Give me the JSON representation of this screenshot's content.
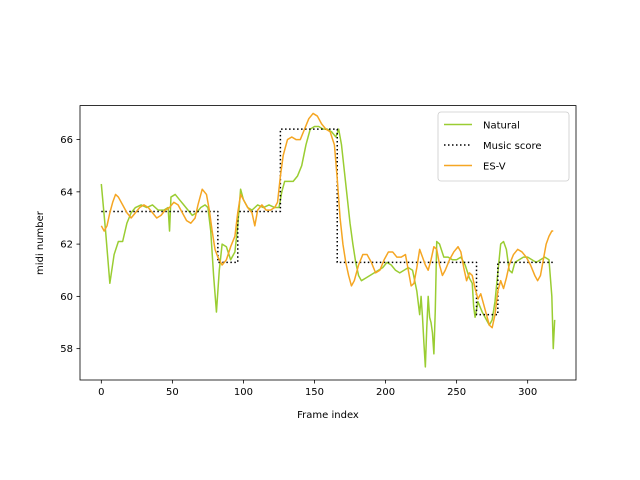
{
  "chart_data": {
    "type": "line",
    "xlabel": "Frame index",
    "ylabel": "midi number",
    "xlim": [
      -15,
      334
    ],
    "ylim": [
      56.8,
      67.3
    ],
    "xticks": [
      0,
      50,
      100,
      150,
      200,
      250,
      300
    ],
    "yticks": [
      58,
      60,
      62,
      64,
      66
    ],
    "grid": false,
    "legend_position": "top-right",
    "series": [
      {
        "name": "Natural",
        "color": "#9acd32",
        "style": "solid",
        "points": [
          [
            0,
            64.3
          ],
          [
            3,
            62.5
          ],
          [
            6,
            60.5
          ],
          [
            9,
            61.6
          ],
          [
            12,
            62.1
          ],
          [
            15,
            62.1
          ],
          [
            18,
            62.8
          ],
          [
            21,
            63.2
          ],
          [
            24,
            63.4
          ],
          [
            28,
            63.5
          ],
          [
            32,
            63.4
          ],
          [
            36,
            63.5
          ],
          [
            40,
            63.3
          ],
          [
            44,
            63.3
          ],
          [
            47,
            63.4
          ],
          [
            48,
            62.5
          ],
          [
            49,
            63.8
          ],
          [
            52,
            63.9
          ],
          [
            55,
            63.7
          ],
          [
            58,
            63.5
          ],
          [
            61,
            63.3
          ],
          [
            64,
            63.1
          ],
          [
            67,
            63.2
          ],
          [
            70,
            63.4
          ],
          [
            73,
            63.5
          ],
          [
            75,
            63.4
          ],
          [
            77,
            62.5
          ],
          [
            79,
            60.8
          ],
          [
            81,
            59.4
          ],
          [
            83,
            61.0
          ],
          [
            85,
            62.0
          ],
          [
            88,
            61.9
          ],
          [
            91,
            61.4
          ],
          [
            94,
            61.7
          ],
          [
            96,
            62.7
          ],
          [
            98,
            64.1
          ],
          [
            100,
            63.7
          ],
          [
            103,
            63.4
          ],
          [
            106,
            63.3
          ],
          [
            110,
            63.5
          ],
          [
            114,
            63.4
          ],
          [
            118,
            63.5
          ],
          [
            122,
            63.4
          ],
          [
            125,
            63.4
          ],
          [
            127,
            64.0
          ],
          [
            129,
            64.4
          ],
          [
            132,
            64.4
          ],
          [
            135,
            64.4
          ],
          [
            138,
            64.6
          ],
          [
            141,
            65.0
          ],
          [
            144,
            65.8
          ],
          [
            147,
            66.4
          ],
          [
            150,
            66.5
          ],
          [
            153,
            66.5
          ],
          [
            156,
            66.4
          ],
          [
            159,
            66.4
          ],
          [
            162,
            66.3
          ],
          [
            165,
            66.1
          ],
          [
            167,
            66.4
          ],
          [
            169,
            65.8
          ],
          [
            171,
            64.8
          ],
          [
            173,
            63.8
          ],
          [
            175,
            62.8
          ],
          [
            177,
            62.0
          ],
          [
            179,
            61.3
          ],
          [
            181,
            60.8
          ],
          [
            183,
            60.6
          ],
          [
            186,
            60.7
          ],
          [
            189,
            60.8
          ],
          [
            192,
            60.9
          ],
          [
            195,
            61.0
          ],
          [
            198,
            61.1
          ],
          [
            201,
            61.3
          ],
          [
            204,
            61.2
          ],
          [
            207,
            61.0
          ],
          [
            210,
            60.9
          ],
          [
            213,
            61.0
          ],
          [
            216,
            61.1
          ],
          [
            219,
            61.0
          ],
          [
            222,
            60.2
          ],
          [
            224,
            59.3
          ],
          [
            225,
            60.0
          ],
          [
            226,
            59.2
          ],
          [
            227,
            58.2
          ],
          [
            228,
            57.3
          ],
          [
            229,
            58.8
          ],
          [
            230,
            60.0
          ],
          [
            231,
            59.2
          ],
          [
            232,
            59.0
          ],
          [
            233,
            58.6
          ],
          [
            234,
            57.8
          ],
          [
            235,
            59.5
          ],
          [
            236,
            62.1
          ],
          [
            238,
            62.0
          ],
          [
            241,
            61.5
          ],
          [
            244,
            61.5
          ],
          [
            247,
            61.4
          ],
          [
            250,
            61.4
          ],
          [
            253,
            61.5
          ],
          [
            256,
            61.2
          ],
          [
            259,
            60.7
          ],
          [
            261,
            60.5
          ],
          [
            262,
            59.6
          ],
          [
            263,
            59.2
          ],
          [
            265,
            59.8
          ],
          [
            268,
            59.4
          ],
          [
            271,
            59.1
          ],
          [
            273,
            58.9
          ],
          [
            275,
            59.1
          ],
          [
            277,
            59.8
          ],
          [
            279,
            60.9
          ],
          [
            281,
            62.0
          ],
          [
            283,
            62.1
          ],
          [
            285,
            61.8
          ],
          [
            287,
            61.0
          ],
          [
            289,
            60.9
          ],
          [
            291,
            61.3
          ],
          [
            294,
            61.4
          ],
          [
            297,
            61.5
          ],
          [
            300,
            61.5
          ],
          [
            303,
            61.4
          ],
          [
            306,
            61.3
          ],
          [
            309,
            61.4
          ],
          [
            312,
            61.5
          ],
          [
            315,
            61.4
          ],
          [
            317,
            60.0
          ],
          [
            318,
            58.0
          ],
          [
            319,
            59.1
          ]
        ]
      },
      {
        "name": "Music score",
        "color": "#000000",
        "style": "dotted",
        "points": [
          [
            0,
            63.25
          ],
          [
            82,
            63.25
          ],
          [
            82,
            61.3
          ],
          [
            96,
            61.3
          ],
          [
            96,
            63.25
          ],
          [
            126,
            63.25
          ],
          [
            126,
            66.4
          ],
          [
            166,
            66.4
          ],
          [
            166,
            61.3
          ],
          [
            264,
            61.3
          ],
          [
            264,
            59.3
          ],
          [
            279,
            59.3
          ],
          [
            279,
            61.3
          ],
          [
            319,
            61.3
          ]
        ]
      },
      {
        "name": "ES-V",
        "color": "#f5a623",
        "style": "solid",
        "points": [
          [
            0,
            62.7
          ],
          [
            2,
            62.5
          ],
          [
            4,
            62.7
          ],
          [
            6,
            63.2
          ],
          [
            8,
            63.6
          ],
          [
            10,
            63.9
          ],
          [
            12,
            63.8
          ],
          [
            15,
            63.5
          ],
          [
            18,
            63.2
          ],
          [
            21,
            63.0
          ],
          [
            24,
            63.2
          ],
          [
            27,
            63.4
          ],
          [
            30,
            63.5
          ],
          [
            33,
            63.4
          ],
          [
            36,
            63.2
          ],
          [
            39,
            63.0
          ],
          [
            42,
            63.1
          ],
          [
            45,
            63.3
          ],
          [
            48,
            63.4
          ],
          [
            51,
            63.6
          ],
          [
            54,
            63.5
          ],
          [
            57,
            63.2
          ],
          [
            60,
            62.9
          ],
          [
            63,
            62.8
          ],
          [
            66,
            63.0
          ],
          [
            68,
            63.5
          ],
          [
            71,
            64.1
          ],
          [
            74,
            63.9
          ],
          [
            76,
            63.3
          ],
          [
            78,
            62.5
          ],
          [
            80,
            61.8
          ],
          [
            82,
            61.5
          ],
          [
            85,
            61.2
          ],
          [
            88,
            61.4
          ],
          [
            91,
            61.9
          ],
          [
            94,
            62.3
          ],
          [
            96,
            63.2
          ],
          [
            98,
            63.9
          ],
          [
            100,
            63.7
          ],
          [
            103,
            63.4
          ],
          [
            106,
            63.2
          ],
          [
            108,
            62.7
          ],
          [
            110,
            63.3
          ],
          [
            113,
            63.5
          ],
          [
            116,
            63.3
          ],
          [
            119,
            63.3
          ],
          [
            122,
            63.4
          ],
          [
            124,
            63.6
          ],
          [
            126,
            64.6
          ],
          [
            128,
            65.4
          ],
          [
            131,
            66.0
          ],
          [
            134,
            66.1
          ],
          [
            137,
            66.0
          ],
          [
            140,
            66.0
          ],
          [
            143,
            66.4
          ],
          [
            146,
            66.8
          ],
          [
            149,
            67.0
          ],
          [
            152,
            66.9
          ],
          [
            155,
            66.6
          ],
          [
            158,
            66.4
          ],
          [
            161,
            66.3
          ],
          [
            164,
            65.8
          ],
          [
            166,
            64.5
          ],
          [
            168,
            63.0
          ],
          [
            170,
            62.0
          ],
          [
            172,
            61.3
          ],
          [
            174,
            60.8
          ],
          [
            176,
            60.4
          ],
          [
            178,
            60.6
          ],
          [
            181,
            61.2
          ],
          [
            184,
            61.6
          ],
          [
            187,
            61.6
          ],
          [
            190,
            61.3
          ],
          [
            193,
            60.9
          ],
          [
            196,
            61.0
          ],
          [
            199,
            61.4
          ],
          [
            202,
            61.7
          ],
          [
            205,
            61.7
          ],
          [
            208,
            61.5
          ],
          [
            211,
            61.5
          ],
          [
            214,
            61.6
          ],
          [
            216,
            61.0
          ],
          [
            218,
            60.4
          ],
          [
            220,
            60.5
          ],
          [
            222,
            61.1
          ],
          [
            224,
            61.8
          ],
          [
            226,
            61.5
          ],
          [
            228,
            61.2
          ],
          [
            230,
            61.0
          ],
          [
            232,
            61.4
          ],
          [
            234,
            61.9
          ],
          [
            236,
            61.8
          ],
          [
            238,
            61.2
          ],
          [
            240,
            60.8
          ],
          [
            242,
            61.0
          ],
          [
            245,
            61.4
          ],
          [
            248,
            61.7
          ],
          [
            251,
            61.9
          ],
          [
            253,
            61.7
          ],
          [
            255,
            61.1
          ],
          [
            257,
            60.6
          ],
          [
            259,
            60.9
          ],
          [
            261,
            60.8
          ],
          [
            263,
            60.3
          ],
          [
            265,
            59.9
          ],
          [
            267,
            60.1
          ],
          [
            269,
            59.7
          ],
          [
            271,
            59.3
          ],
          [
            273,
            58.9
          ],
          [
            275,
            58.8
          ],
          [
            277,
            59.3
          ],
          [
            279,
            60.2
          ],
          [
            281,
            60.6
          ],
          [
            283,
            60.3
          ],
          [
            285,
            60.7
          ],
          [
            287,
            61.2
          ],
          [
            290,
            61.6
          ],
          [
            293,
            61.8
          ],
          [
            296,
            61.7
          ],
          [
            299,
            61.5
          ],
          [
            302,
            61.2
          ],
          [
            305,
            60.8
          ],
          [
            307,
            60.6
          ],
          [
            309,
            60.8
          ],
          [
            311,
            61.4
          ],
          [
            313,
            62.0
          ],
          [
            315,
            62.3
          ],
          [
            317,
            62.5
          ],
          [
            318,
            62.5
          ]
        ]
      }
    ]
  }
}
